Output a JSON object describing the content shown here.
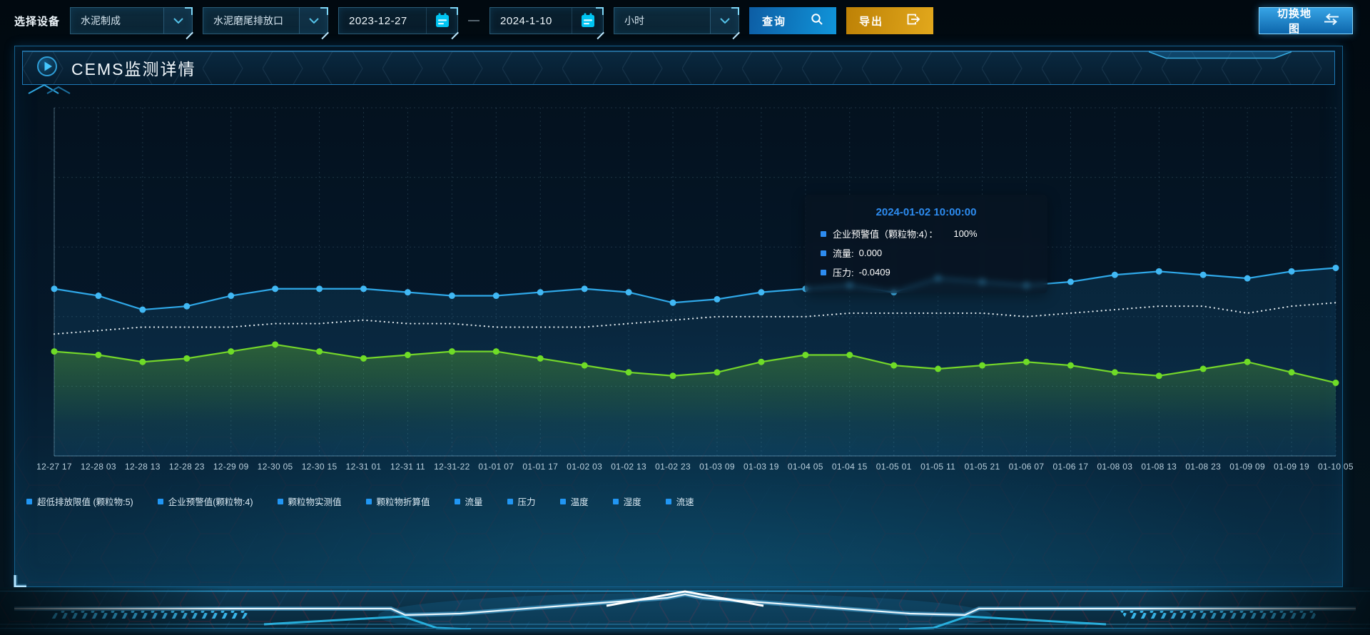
{
  "toolbar": {
    "device_label": "选择设备",
    "select_process": "水泥制成",
    "select_outlet": "水泥磨尾排放口",
    "date_start": "2023-12-27",
    "date_separator": "—",
    "date_end": "2024-1-10",
    "select_interval": "小时",
    "query_label": "查询",
    "export_label": "导出",
    "switch_map_label": "切换地图"
  },
  "panel": {
    "title": "CEMS监测详情"
  },
  "tooltip": {
    "title": "2024-01-02 10:00:00",
    "title_color": "#2d8cf0",
    "marker_color": "#2d8cf0",
    "rows": [
      {
        "label": "企业预警值（颗粒物:4）：",
        "value": "100%"
      },
      {
        "label": "流量:",
        "value": "0.000"
      },
      {
        "label": "压力:",
        "value": "-0.0409"
      }
    ]
  },
  "legend": {
    "marker_color": "#2196f3",
    "items": [
      "超低排放限值 (颗粒物:5)",
      "企业预警值(颗粒物:4)",
      "颗粒物实测值",
      "颗粒物折算值",
      "流量",
      "压力",
      "温度",
      "湿度",
      "流速"
    ]
  },
  "chart_data": {
    "type": "line",
    "title": "",
    "xlabel": "",
    "ylabel": "",
    "ylim": [
      0,
      100
    ],
    "grid": true,
    "legend_position": "bottom-left",
    "x_labels": [
      "12-27 17",
      "12-28 03",
      "12-28 13",
      "12-28 23",
      "12-29 09",
      "12-30 05",
      "12-30 15",
      "12-31 01",
      "12-31 11",
      "12-31-22",
      "01-01 07",
      "01-01 17",
      "01-02 03",
      "01-02 13",
      "01-02 23",
      "01-03 09",
      "01-03 19",
      "01-04 05",
      "01-04 15",
      "01-05 01",
      "01-05 11",
      "01-05 21",
      "01-06 07",
      "01-06 17",
      "01-08 03",
      "01-08 13",
      "01-08 23",
      "01-09 09",
      "01-09 19",
      "01-10 05"
    ],
    "series": [
      {
        "name": "企业预警值(颗粒物:4)",
        "color": "#2fa8e8",
        "dot_color": "#41b8f4",
        "style": "solid",
        "markers": true,
        "area_fill": "rgba(42,150,210,0.13)",
        "values_pct": [
          48,
          46,
          42,
          43,
          46,
          48,
          48,
          48,
          47,
          46,
          46,
          47,
          48,
          47,
          44,
          45,
          47,
          48,
          49,
          47,
          51,
          50,
          49,
          50,
          52,
          53,
          52,
          51,
          53,
          54
        ]
      },
      {
        "name": "超低排放限值 (颗粒物:5)",
        "color": "#e6eef2",
        "style": "dotted",
        "markers": false,
        "area_fill": "none",
        "values_pct": [
          35,
          36,
          37,
          37,
          37,
          38,
          38,
          39,
          38,
          38,
          37,
          37,
          37,
          38,
          39,
          40,
          40,
          40,
          41,
          41,
          41,
          41,
          40,
          41,
          42,
          43,
          43,
          41,
          43,
          44
        ]
      },
      {
        "name": "颗粒物实测值",
        "color": "#74d62a",
        "dot_color": "#6fdc27",
        "style": "solid",
        "markers": true,
        "area_fill": "green-gradient",
        "values_pct": [
          30,
          29,
          27,
          28,
          30,
          32,
          30,
          28,
          29,
          30,
          30,
          28,
          26,
          24,
          23,
          24,
          27,
          29,
          29,
          26,
          25,
          26,
          27,
          26,
          24,
          23,
          25,
          27,
          24,
          21
        ]
      }
    ]
  }
}
